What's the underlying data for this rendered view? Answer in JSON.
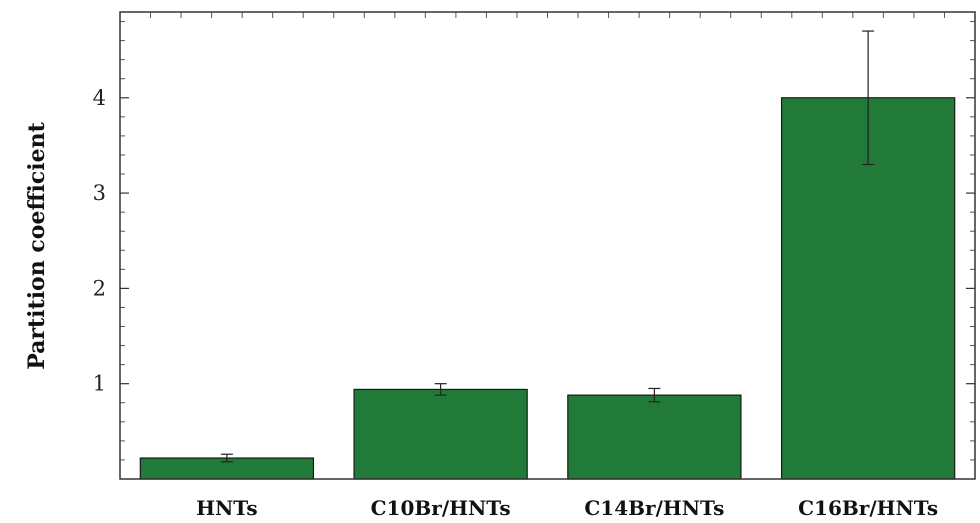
{
  "chart_data": {
    "type": "bar",
    "title": "",
    "xlabel": "",
    "ylabel": "Partition coefficient",
    "categories": [
      "HNTs",
      "C10Br/HNTs",
      "C14Br/HNTs",
      "C16Br/HNTs"
    ],
    "values": [
      0.22,
      0.94,
      0.88,
      4.0
    ],
    "error": [
      0.04,
      0.06,
      0.07,
      0.7
    ],
    "ylim": [
      0,
      4.9
    ],
    "yticks": [
      1,
      2,
      3,
      4
    ],
    "grid": false,
    "bar_color": "#227a38",
    "frame_color": "#333333"
  }
}
